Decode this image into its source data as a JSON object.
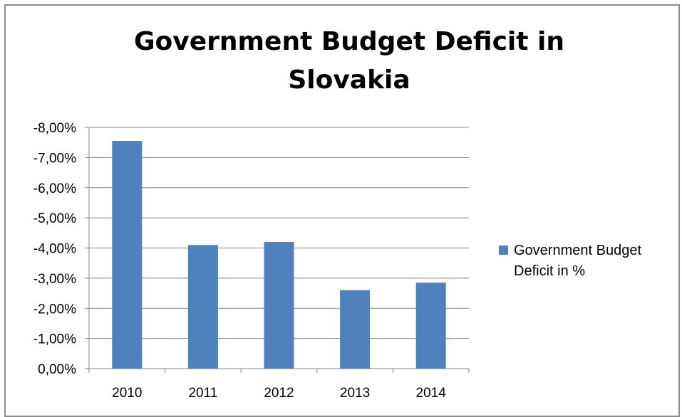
{
  "chart_data": {
    "type": "bar",
    "title_lines": [
      "Government Budget Deficit in",
      "Slovakia"
    ],
    "categories": [
      "2010",
      "2011",
      "2012",
      "2013",
      "2014"
    ],
    "series": [
      {
        "name": "Government Budget Deficit in %",
        "values": [
          -7.55,
          -4.1,
          -4.2,
          -2.6,
          -2.85
        ],
        "color": "#4f81bd"
      }
    ],
    "y_ticks": [
      "0,00%",
      "-1,00%",
      "-2,00%",
      "-3,00%",
      "-4,00%",
      "-5,00%",
      "-6,00%",
      "-7,00%",
      "-8,00%"
    ],
    "ylim": [
      0,
      -8
    ],
    "y_axis_reversed": true,
    "grid": true,
    "legend_position": "right"
  }
}
